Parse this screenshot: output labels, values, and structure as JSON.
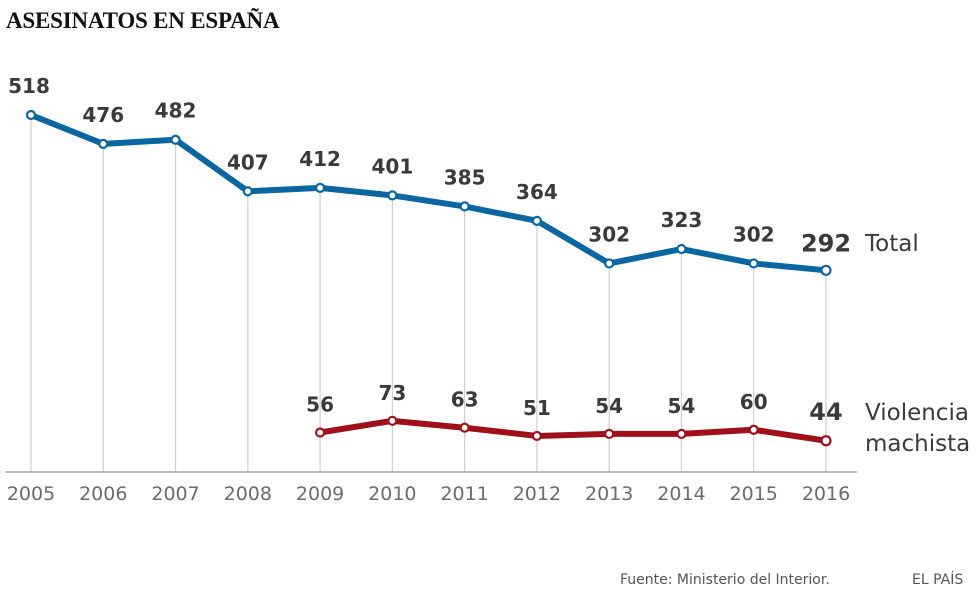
{
  "title": "ASESINATOS EN ESPAÑA",
  "footer": {
    "source": "Fuente: Ministerio del Interior.",
    "brand": "EL PAÍS"
  },
  "chart_data": {
    "type": "line",
    "title": "ASESINATOS EN ESPAÑA",
    "xlabel": "",
    "ylabel": "",
    "grid": "vertical lines at each year",
    "legend": "right (labels at end of series)",
    "x": [
      "2005",
      "2006",
      "2007",
      "2008",
      "2009",
      "2010",
      "2011",
      "2012",
      "2013",
      "2014",
      "2015",
      "2016"
    ],
    "ylim": [
      0,
      518
    ],
    "series": [
      {
        "name": "Total",
        "color": "#0a66a0",
        "values": [
          518,
          476,
          482,
          407,
          412,
          401,
          385,
          364,
          302,
          323,
          302,
          292
        ]
      },
      {
        "name": "Violencia machista",
        "label_lines": [
          "Violencia",
          "machista"
        ],
        "color": "#a0101a",
        "values": [
          null,
          null,
          null,
          null,
          56,
          73,
          63,
          51,
          54,
          54,
          60,
          44
        ]
      }
    ]
  }
}
